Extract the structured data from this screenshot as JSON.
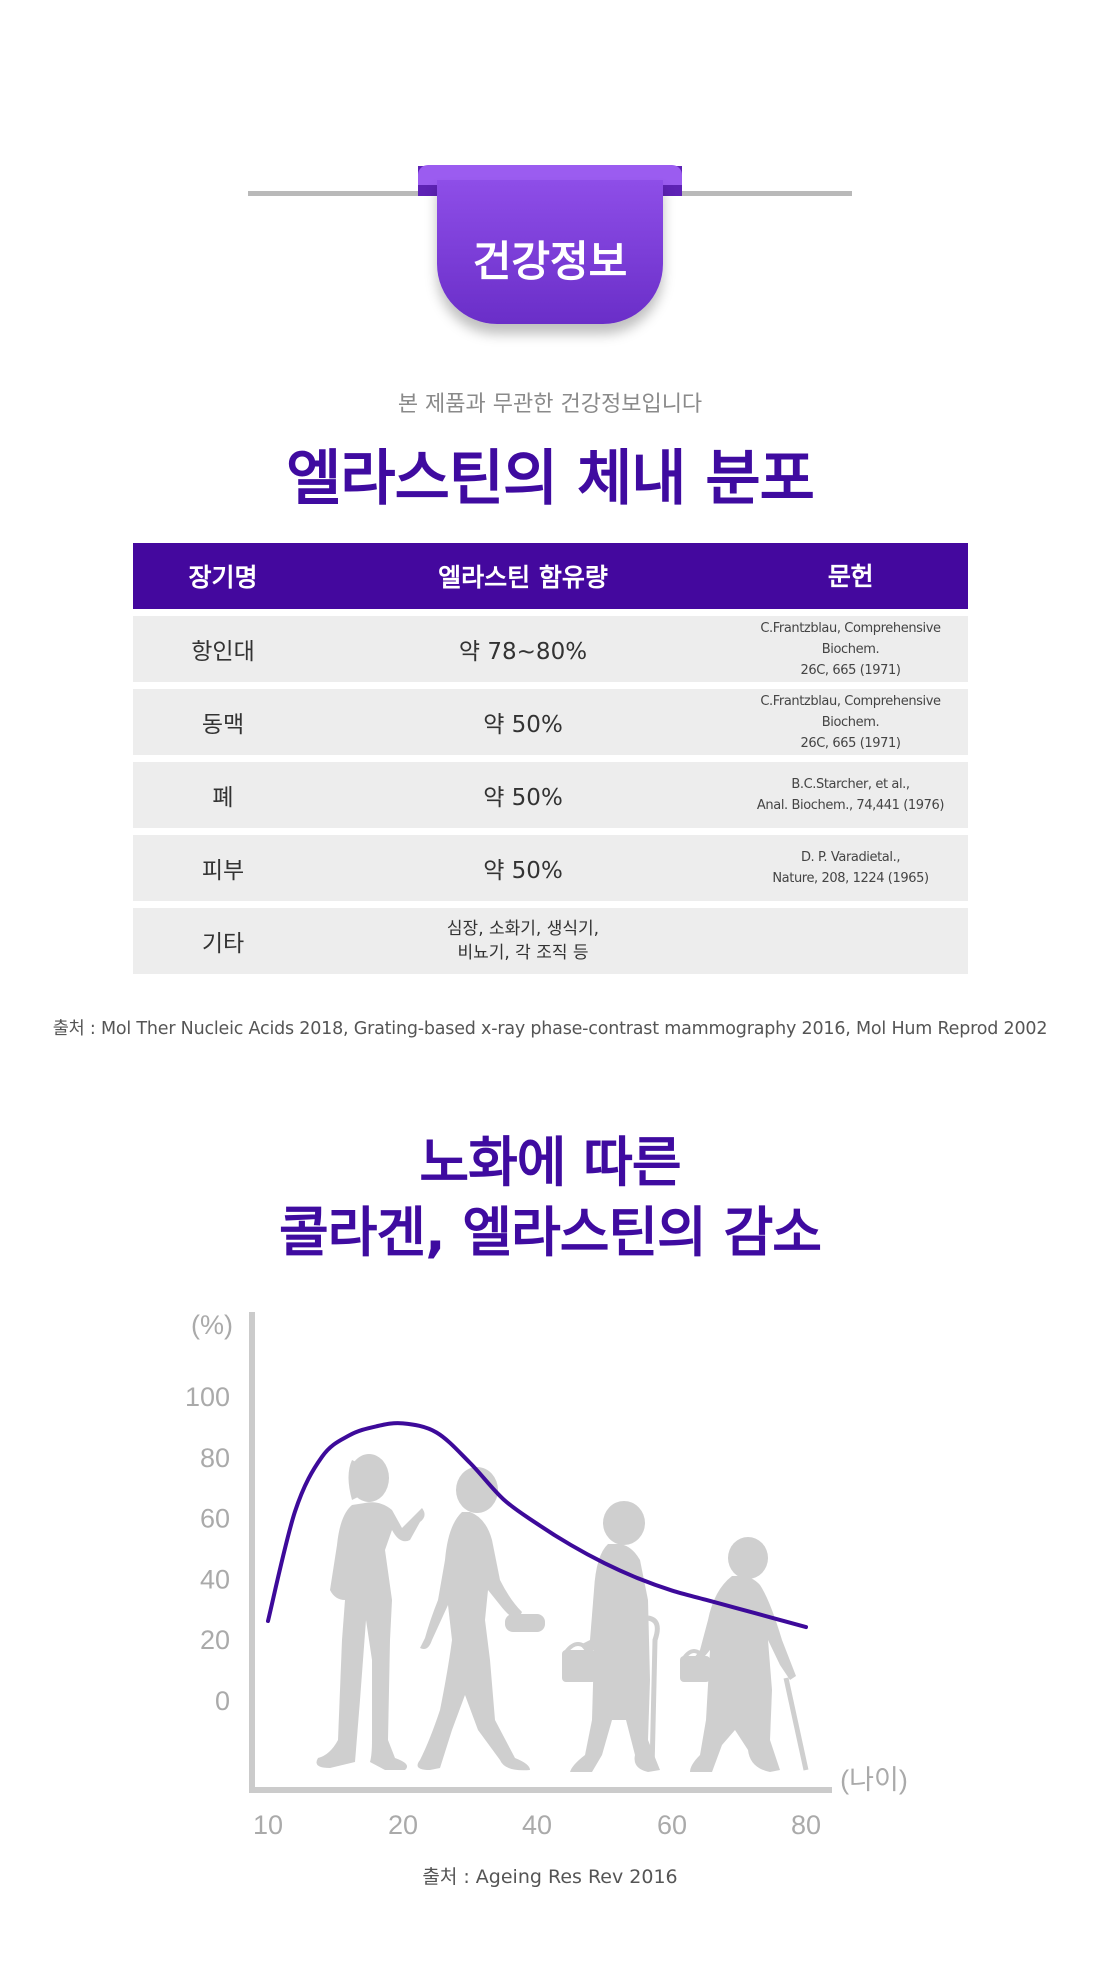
{
  "header": {
    "badge": "건강정보",
    "subtitle": "본 제품과 무관한 건강정보입니다",
    "title": "엘라스틴의 체내 분포"
  },
  "table": {
    "headers": [
      "장기명",
      "엘라스틴 함유량",
      "문헌"
    ],
    "rows": [
      {
        "organ": "항인대",
        "content": "약 78~80%",
        "ref1": "C.Frantzblau, Comprehensive Biochem.",
        "ref2": "26C, 665 (1971)"
      },
      {
        "organ": "동맥",
        "content": "약 50%",
        "ref1": "C.Frantzblau, Comprehensive Biochem.",
        "ref2": "26C, 665 (1971)"
      },
      {
        "organ": "폐",
        "content": "약 50%",
        "ref1": "B.C.Starcher, et al.,",
        "ref2": "Anal. Biochem., 74,441 (1976)"
      },
      {
        "organ": "피부",
        "content": "약 50%",
        "ref1": "D. P. Varadietal.,",
        "ref2": "Nature, 208, 1224 (1965)"
      },
      {
        "organ": "기타",
        "content1": "심장, 소화기, 생식기,",
        "content2": "비뇨기, 각 조직 등",
        "ref1": "",
        "ref2": ""
      }
    ]
  },
  "source1": "출처 : Mol Ther Nucleic Acids 2018, Grating-based x-ray phase-contrast mammography 2016, Mol Hum Reprod 2002",
  "section2": {
    "title_line1": "노화에 따른",
    "title_line2": "콜라겐, 엘라스틴의 감소"
  },
  "chart_data": {
    "type": "line",
    "title": "",
    "xlabel": "(나이)",
    "ylabel": "(%)",
    "x_ticks": [
      "10",
      "20",
      "40",
      "60",
      "80"
    ],
    "y_ticks": [
      "0",
      "20",
      "40",
      "60",
      "80",
      "100"
    ],
    "ylim": [
      0,
      100
    ],
    "series": [
      {
        "color": "#3d0a9a",
        "x": [
          10,
          12,
          14,
          16,
          18,
          20,
          25,
          30,
          35,
          40,
          45,
          50,
          55,
          60,
          65,
          70,
          75,
          80
        ],
        "y": [
          26,
          62,
          80,
          87,
          90,
          91,
          88,
          78,
          66,
          58,
          51,
          45,
          40,
          36,
          33,
          30,
          27,
          24
        ]
      }
    ],
    "grid": false,
    "legend": "none"
  },
  "source2": "출처 : Ageing Res Rev 2016"
}
